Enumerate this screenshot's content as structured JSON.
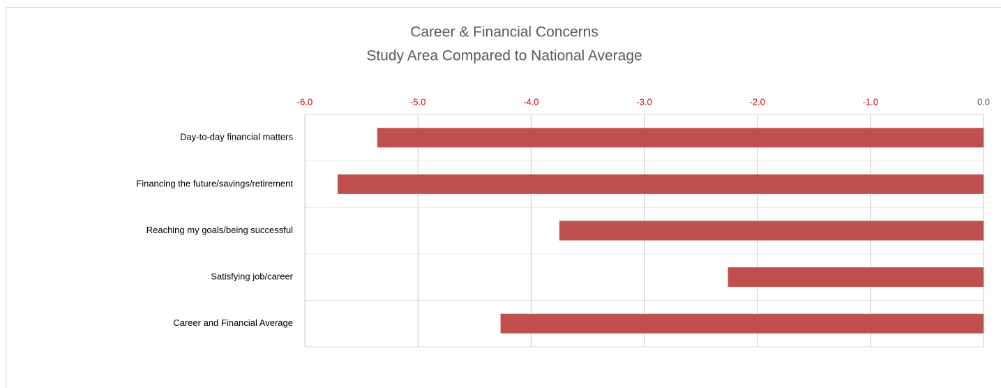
{
  "chart_data": {
    "type": "hbar",
    "title": "Career & Financial Concerns",
    "subtitle": "Study Area Compared to National Average",
    "categories": [
      "Day-to-day financial matters",
      "Financing the future/savings/retirement",
      "Reaching my goals/being successful",
      "Satisfying job/career",
      "Career and Financial Average"
    ],
    "values": [
      -5.36,
      -5.71,
      -3.75,
      -2.26,
      -4.27
    ],
    "color": "#c0504d",
    "xlim": [
      -6,
      0
    ],
    "xticks": [
      {
        "value": -6,
        "label": "-6.0"
      },
      {
        "value": -5,
        "label": "-5.0"
      },
      {
        "value": -4,
        "label": "-4.0"
      },
      {
        "value": -3,
        "label": "-3.0"
      },
      {
        "value": -2,
        "label": "-2.0"
      },
      {
        "value": -1,
        "label": "-1.0"
      },
      {
        "value": 0,
        "label": "0.0"
      }
    ],
    "negative_tick_label_color": "#e00000",
    "tick_label_color": "#595959",
    "grid": true
  }
}
